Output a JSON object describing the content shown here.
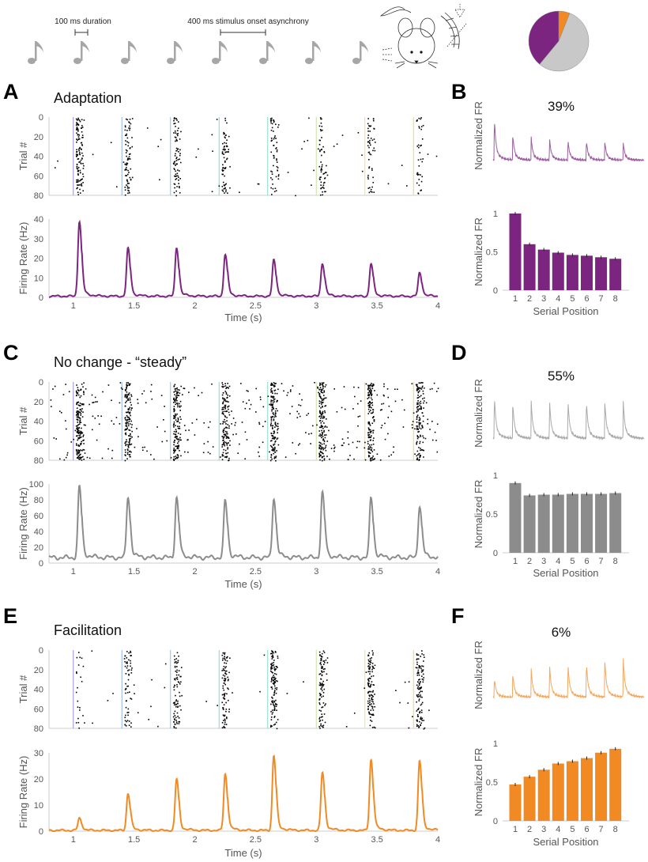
{
  "header": {
    "duration_label": "100 ms duration",
    "soa_label": "400 ms stimulus onset asynchrony",
    "note_icon": "music-note-icon",
    "note_count": 8,
    "note_color": "#a6a6a6",
    "pie": {
      "slices": [
        {
          "name": "Facilitation",
          "value": 6,
          "color": "#f28a24"
        },
        {
          "name": "No change",
          "value": 55,
          "color": "#c8c8c8"
        },
        {
          "name": "Adaptation",
          "value": 39,
          "color": "#7b2581"
        }
      ]
    }
  },
  "labels": {
    "trial_axis": "Trial #",
    "rate_axis": "Firing Rate (Hz)",
    "time_axis": "Time (s)",
    "norm_axis": "Normalized FR",
    "serial_axis": "Serial Position"
  },
  "chart_data": [
    {
      "id": "A",
      "panel_letter": "A",
      "type": "line",
      "title": "Adaptation",
      "color": "#7b2581",
      "xlabel": "Time (s)",
      "ylabel": "Firing Rate (Hz)",
      "xlim": [
        0.8,
        4
      ],
      "ylim": [
        0,
        40
      ],
      "xticks": [
        "1",
        "1.5",
        "2",
        "2.5",
        "3",
        "3.5",
        "4"
      ],
      "yticks": [
        "0",
        "10",
        "20",
        "30",
        "40"
      ],
      "raster_yticks": [
        "0",
        "20",
        "40",
        "60",
        "80"
      ],
      "raster_ylabel": "Trial #",
      "onsets": [
        1.0,
        1.4,
        1.8,
        2.2,
        2.6,
        3.0,
        3.4,
        3.8
      ],
      "peak_rates": [
        39,
        25,
        25.5,
        22,
        19,
        17.5,
        17,
        12.5
      ],
      "baseline": 0.6
    },
    {
      "id": "B",
      "panel_letter": "B",
      "type": "bar",
      "percent": "39%",
      "color": "#7b2581",
      "xlabel": "Serial Position",
      "ylabel": "Normalized FR",
      "categories": [
        "1",
        "2",
        "3",
        "4",
        "5",
        "6",
        "7",
        "8"
      ],
      "values": [
        1.0,
        0.6,
        0.53,
        0.49,
        0.46,
        0.45,
        0.43,
        0.41
      ],
      "ylim": [
        0,
        1
      ],
      "yticks": [
        "0",
        "0.5",
        "1"
      ]
    },
    {
      "id": "C",
      "panel_letter": "C",
      "type": "line",
      "title": "No change - “steady”",
      "color": "#8c8c8c",
      "xlabel": "Time (s)",
      "ylabel": "Firing Rate (Hz)",
      "xlim": [
        0.8,
        4
      ],
      "ylim": [
        0,
        100
      ],
      "xticks": [
        "1",
        "1.5",
        "2",
        "2.5",
        "3",
        "3.5",
        "4"
      ],
      "yticks": [
        "0",
        "20",
        "40",
        "60",
        "80",
        "100"
      ],
      "raster_yticks": [
        "0",
        "20",
        "40",
        "60",
        "80"
      ],
      "raster_ylabel": "Trial #",
      "onsets": [
        1.0,
        1.4,
        1.8,
        2.2,
        2.6,
        3.0,
        3.4,
        3.8
      ],
      "peak_rates": [
        97,
        84,
        83,
        79,
        83,
        89,
        83,
        73
      ],
      "baseline": 7
    },
    {
      "id": "D",
      "panel_letter": "D",
      "type": "bar",
      "percent": "55%",
      "color": "#8c8c8c",
      "xlabel": "Serial Position",
      "ylabel": "Normalized FR",
      "categories": [
        "1",
        "2",
        "3",
        "4",
        "5",
        "6",
        "7",
        "8"
      ],
      "values": [
        0.9,
        0.74,
        0.75,
        0.75,
        0.76,
        0.76,
        0.76,
        0.77
      ],
      "ylim": [
        0,
        1
      ],
      "yticks": [
        "0",
        "0.5",
        "1"
      ]
    },
    {
      "id": "E",
      "panel_letter": "E",
      "type": "line",
      "title": "Facilitation",
      "color": "#f28a24",
      "xlabel": "Time (s)",
      "ylabel": "Firing Rate (Hz)",
      "xlim": [
        0.8,
        4
      ],
      "ylim": [
        0,
        30
      ],
      "xticks": [
        "1",
        "1.5",
        "2",
        "2.5",
        "3",
        "3.5",
        "4"
      ],
      "yticks": [
        "0",
        "10",
        "20",
        "30"
      ],
      "raster_yticks": [
        "0",
        "20",
        "40",
        "60",
        "80"
      ],
      "raster_ylabel": "Trial #",
      "onsets": [
        1.0,
        1.4,
        1.8,
        2.2,
        2.6,
        3.0,
        3.4,
        3.8
      ],
      "peak_rates": [
        5,
        14.5,
        20,
        22,
        29,
        22.5,
        27.5,
        27
      ],
      "baseline": 0.3
    },
    {
      "id": "F",
      "panel_letter": "F",
      "type": "bar",
      "percent": "6%",
      "color": "#f28a24",
      "xlabel": "Serial Position",
      "ylabel": "Normalized FR",
      "categories": [
        "1",
        "2",
        "3",
        "4",
        "5",
        "6",
        "7",
        "8"
      ],
      "values": [
        0.47,
        0.57,
        0.66,
        0.74,
        0.77,
        0.81,
        0.88,
        0.93
      ],
      "ylim": [
        0,
        1
      ],
      "yticks": [
        "0",
        "0.5",
        "1"
      ]
    }
  ]
}
